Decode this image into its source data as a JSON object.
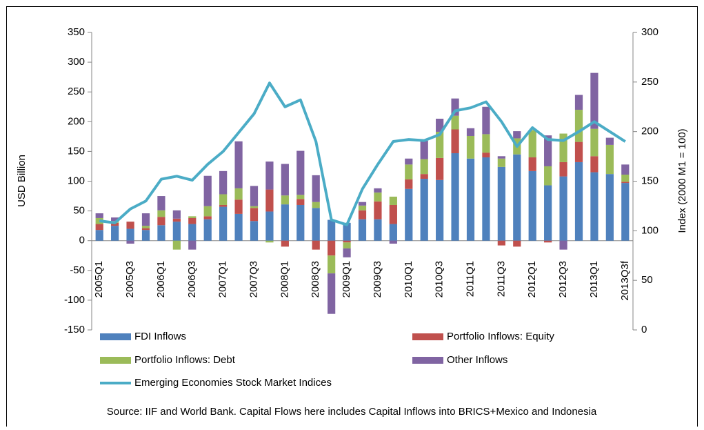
{
  "chart_data": {
    "type": "bar_line",
    "ylabel": "USD Billion",
    "y2label": "Index (2000 M1 = 100)",
    "source": "Source: IIF and World Bank. Capital Flows here includes Capital Inflows into BRICS+Mexico and Indonesia",
    "categories": [
      "2005Q1",
      null,
      "2005Q3",
      null,
      "2006Q1",
      null,
      "2006Q3",
      null,
      "2007Q1",
      null,
      "2007Q3",
      null,
      "2008Q1",
      null,
      "2008Q3",
      null,
      "2009Q1",
      null,
      "2009Q3",
      null,
      "2010Q1",
      null,
      "2010Q3",
      null,
      "2011Q1",
      null,
      "2011Q3",
      null,
      "2012Q1",
      null,
      "2012Q3",
      null,
      "2013Q1",
      null,
      "2013Q3f"
    ],
    "series": [
      {
        "name": "FDI Inflows",
        "color": "#4f81bd",
        "values": [
          18,
          25,
          20,
          18,
          26,
          32,
          28,
          36,
          57,
          45,
          33,
          49,
          61,
          60,
          55,
          35,
          30,
          36,
          36,
          28,
          87,
          104,
          102,
          147,
          138,
          140,
          124,
          145,
          117,
          93,
          108,
          132,
          115,
          112,
          97
        ]
      },
      {
        "name": "Portfolio Inflows: Equity",
        "color": "#c0504d",
        "values": [
          10,
          5,
          12,
          3,
          14,
          5,
          10,
          5,
          3,
          24,
          22,
          37,
          -10,
          10,
          -15,
          -25,
          -3,
          15,
          30,
          32,
          16,
          8,
          37,
          40,
          0,
          8,
          -8,
          -10,
          23,
          -3,
          24,
          34,
          27,
          0,
          2
        ]
      },
      {
        "name": "Portfolio Inflows: Debt",
        "color": "#9bbb59",
        "values": [
          10,
          3,
          0,
          4,
          11,
          -15,
          3,
          17,
          18,
          19,
          3,
          -3,
          15,
          7,
          10,
          -30,
          -10,
          8,
          15,
          14,
          25,
          25,
          44,
          23,
          38,
          31,
          14,
          27,
          46,
          32,
          48,
          54,
          46,
          49,
          12
        ]
      },
      {
        "name": "Other Inflows",
        "color": "#8064a2",
        "values": [
          8,
          6,
          -5,
          21,
          24,
          14,
          -15,
          51,
          39,
          79,
          34,
          47,
          53,
          74,
          45,
          -68,
          -15,
          6,
          7,
          -5,
          10,
          31,
          22,
          29,
          13,
          46,
          4,
          12,
          0,
          52,
          -15,
          25,
          94,
          12,
          17
        ]
      },
      {
        "name": "Emerging Economies Stock Market Indices",
        "color": "#4bacc6",
        "axis": "y2",
        "values": [
          110,
          108,
          122,
          130,
          152,
          155,
          151,
          167,
          180,
          199,
          218,
          249,
          225,
          232,
          190,
          111,
          106,
          142,
          167,
          190,
          192,
          191,
          197,
          221,
          224,
          230,
          210,
          185,
          204,
          192,
          191,
          200,
          210,
          200,
          190
        ]
      }
    ],
    "ylim": [
      -150,
      350
    ],
    "yticks": [
      -150,
      -100,
      -50,
      0,
      50,
      100,
      150,
      200,
      250,
      300,
      350
    ],
    "y2lim": [
      0,
      300
    ],
    "y2ticks": [
      0,
      50,
      100,
      150,
      200,
      250,
      300
    ]
  }
}
